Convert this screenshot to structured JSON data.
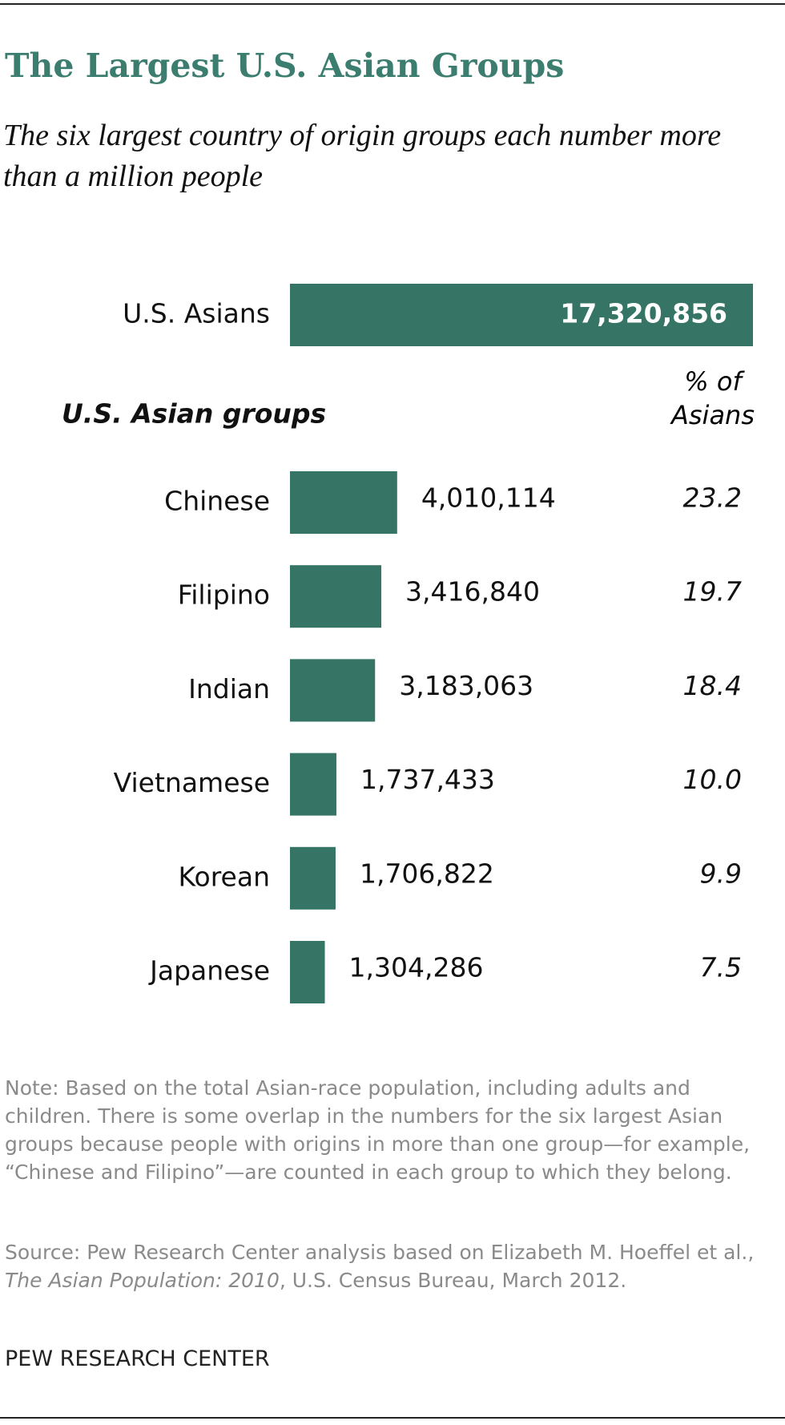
{
  "chart_data": {
    "type": "bar",
    "title": "The Largest U.S. Asian Groups",
    "subtitle": "The six largest country of origin groups each number more than a million people",
    "total_category": "U.S. Asians",
    "total_value": 17320856,
    "total_value_label": "17,320,856",
    "groups_heading": "U.S. Asian groups",
    "percent_heading": "% of Asians",
    "categories": [
      "Chinese",
      "Filipino",
      "Indian",
      "Vietnamese",
      "Korean",
      "Japanese"
    ],
    "values": [
      4010114,
      3416840,
      3183063,
      1737433,
      1706822,
      1304286
    ],
    "value_labels": [
      "4,010,114",
      "3,416,840",
      "3,183,063",
      "1,737,433",
      "1,706,822",
      "1,304,286"
    ],
    "percent_labels": [
      "23.2",
      "19.7",
      "18.4",
      "10.0",
      "9.9",
      "7.5"
    ],
    "color": "#367565"
  },
  "note": "Note: Based on the total Asian-race population, including adults and children. There is some overlap in the numbers for the six largest Asian groups because people with origins in more than one group—for example, “Chinese and Filipino”—are counted in each group to which they belong.",
  "source_prefix": "Source: Pew Research Center analysis based on Elizabeth M. Hoeffel et al., ",
  "source_title": "The Asian Population: 2010",
  "source_suffix": ", U.S. Census Bureau, March 2012.",
  "footer": "PEW RESEARCH CENTER"
}
